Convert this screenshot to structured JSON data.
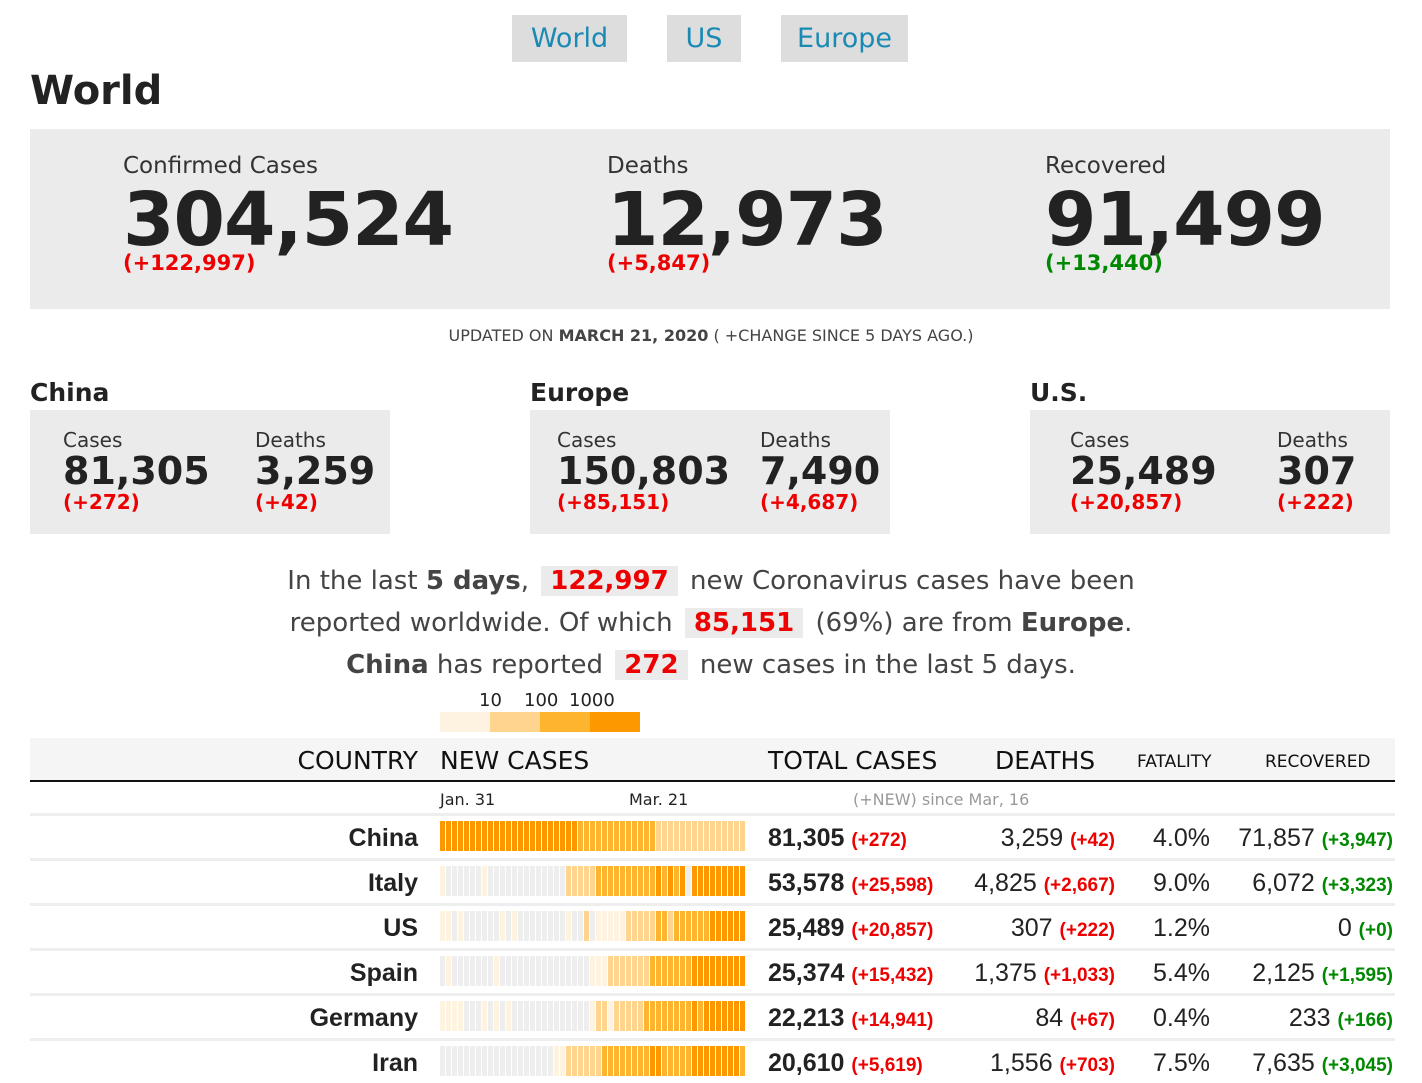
{
  "nav": [
    "World",
    "US",
    "Europe"
  ],
  "title": "World",
  "summary": {
    "confirmed": {
      "label": "Confirmed Cases",
      "value": "304,524",
      "change": "(+122,997)"
    },
    "deaths": {
      "label": "Deaths",
      "value": "12,973",
      "change": "(+5,847)"
    },
    "recovered": {
      "label": "Recovered",
      "value": "91,499",
      "change": "(+13,440)"
    }
  },
  "updated": {
    "prefix": "UPDATED ON ",
    "date": "MARCH 21, 2020",
    "suffix": " ( +CHANGE SINCE 5 DAYS AGO.)"
  },
  "regions": [
    {
      "name": "China",
      "cases_label": "Cases",
      "cases": "81,305",
      "cases_change": "(+272)",
      "deaths_label": "Deaths",
      "deaths": "3,259",
      "deaths_change": "(+42)"
    },
    {
      "name": "Europe",
      "cases_label": "Cases",
      "cases": "150,803",
      "cases_change": "(+85,151)",
      "deaths_label": "Deaths",
      "deaths": "7,490",
      "deaths_change": "(+4,687)"
    },
    {
      "name": "U.S.",
      "cases_label": "Cases",
      "cases": "25,489",
      "cases_change": "(+20,857)",
      "deaths_label": "Deaths",
      "deaths": "307",
      "deaths_change": "(+222)"
    }
  ],
  "sentence": {
    "p1": "In the last ",
    "days": "5 days",
    "p2": ",",
    "n1": "122,997",
    "p3": "new Coronavirus cases have been",
    "p4": "reported worldwide. Of which",
    "n2": "85,151",
    "p5": "(69%) are from ",
    "europe": "Europe",
    "p6": ".",
    "china": "China",
    "p7": " has reported",
    "n3": "272",
    "p8": "new cases in the last 5 days."
  },
  "legend": {
    "labels": [
      "10",
      "100",
      "1000"
    ],
    "colors": [
      "#fef3e0",
      "#fed48e",
      "#feb42e",
      "#fe9800"
    ],
    "no_data_color": "#eeeeee"
  },
  "table": {
    "headers": {
      "country": "COUNTRY",
      "new_cases": "NEW CASES",
      "total": "TOTAL CASES",
      "deaths": "DEATHS",
      "fatality": "FATALITY",
      "recovered": "RECOVERED"
    },
    "date_start": "Jan. 31",
    "date_end": "Mar. 21",
    "new_note": "(+NEW) since Mar, 16",
    "rows": [
      {
        "country": "China",
        "total": "81,305",
        "total_new": "(+272)",
        "deaths": "3,259",
        "deaths_new": "(+42)",
        "fatality": "4.0%",
        "recovered": "71,857",
        "recovered_new": "(+3,947)",
        "levels": [
          4,
          4,
          4,
          4,
          4,
          4,
          4,
          4,
          4,
          4,
          4,
          4,
          4,
          4,
          4,
          4,
          4,
          4,
          4,
          4,
          4,
          4,
          4,
          3,
          3,
          3,
          3,
          3,
          3,
          3,
          3,
          3,
          3,
          3,
          3,
          3,
          2,
          2,
          2,
          2,
          2,
          2,
          2,
          2,
          2,
          2,
          2,
          2,
          2,
          2,
          2
        ]
      },
      {
        "country": "Italy",
        "total": "53,578",
        "total_new": "(+25,598)",
        "deaths": "4,825",
        "deaths_new": "(+2,667)",
        "fatality": "9.0%",
        "recovered": "6,072",
        "recovered_new": "(+3,323)",
        "levels": [
          1,
          0,
          0,
          0,
          0,
          0,
          0,
          1,
          0,
          0,
          0,
          0,
          0,
          0,
          0,
          0,
          0,
          0,
          0,
          0,
          0,
          2,
          2,
          2,
          2,
          2,
          3,
          3,
          3,
          3,
          3,
          3,
          3,
          3,
          3,
          3,
          4,
          3,
          4,
          3,
          4,
          0,
          4,
          4,
          4,
          4,
          4,
          4,
          4,
          4,
          4
        ]
      },
      {
        "country": "US",
        "total": "25,489",
        "total_new": "(+20,857)",
        "deaths": "307",
        "deaths_new": "(+222)",
        "fatality": "1.2%",
        "recovered": "0",
        "recovered_new": "(+0)",
        "levels": [
          1,
          1,
          0,
          1,
          0,
          0,
          0,
          0,
          0,
          0,
          1,
          0,
          1,
          0,
          0,
          0,
          0,
          0,
          0,
          0,
          0,
          1,
          0,
          0,
          2,
          0,
          1,
          1,
          1,
          1,
          1,
          2,
          2,
          2,
          2,
          2,
          3,
          3,
          2,
          3,
          3,
          3,
          3,
          3,
          3,
          4,
          4,
          4,
          4,
          4,
          4
        ]
      },
      {
        "country": "Spain",
        "total": "25,374",
        "total_new": "(+15,432)",
        "deaths": "1,375",
        "deaths_new": "(+1,033)",
        "fatality": "5.4%",
        "recovered": "2,125",
        "recovered_new": "(+1,595)",
        "levels": [
          0,
          1,
          0,
          0,
          0,
          0,
          0,
          0,
          0,
          1,
          0,
          0,
          0,
          0,
          0,
          0,
          0,
          0,
          0,
          0,
          0,
          0,
          0,
          0,
          0,
          1,
          1,
          1,
          2,
          2,
          2,
          2,
          2,
          2,
          2,
          3,
          3,
          3,
          3,
          3,
          3,
          3,
          4,
          4,
          4,
          4,
          4,
          4,
          4,
          4,
          4
        ]
      },
      {
        "country": "Germany",
        "total": "22,213",
        "total_new": "(+14,941)",
        "deaths": "84",
        "deaths_new": "(+67)",
        "fatality": "0.4%",
        "recovered": "233",
        "recovered_new": "(+166)",
        "levels": [
          1,
          1,
          1,
          1,
          0,
          0,
          0,
          1,
          0,
          1,
          0,
          1,
          0,
          0,
          0,
          0,
          0,
          0,
          0,
          0,
          0,
          0,
          0,
          0,
          0,
          1,
          2,
          2,
          1,
          2,
          2,
          2,
          2,
          2,
          3,
          3,
          3,
          3,
          3,
          3,
          3,
          3,
          4,
          3,
          4,
          4,
          4,
          4,
          4,
          4,
          4
        ]
      },
      {
        "country": "Iran",
        "total": "20,610",
        "total_new": "(+5,619)",
        "deaths": "1,556",
        "deaths_new": "(+703)",
        "fatality": "7.5%",
        "recovered": "7,635",
        "recovered_new": "(+3,045)",
        "levels": [
          0,
          0,
          0,
          0,
          0,
          0,
          0,
          0,
          0,
          0,
          0,
          0,
          0,
          0,
          0,
          0,
          0,
          0,
          0,
          1,
          1,
          2,
          2,
          2,
          2,
          2,
          2,
          3,
          3,
          3,
          3,
          3,
          3,
          3,
          3,
          4,
          4,
          3,
          3,
          3,
          3,
          3,
          4,
          4,
          4,
          4,
          4,
          4,
          4,
          4,
          3
        ]
      }
    ]
  }
}
